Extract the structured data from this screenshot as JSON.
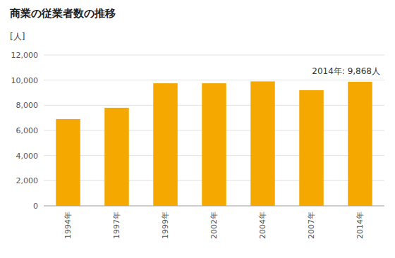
{
  "chart_data": {
    "type": "bar",
    "title": "商業の従業者数の推移",
    "ylabel": "[人]",
    "annotation": "2014年: 9,868人",
    "categories": [
      "1994年",
      "1997年",
      "1999年",
      "2002年",
      "2004年",
      "2007年",
      "2014年"
    ],
    "values": [
      6900,
      7800,
      9750,
      9750,
      9900,
      9200,
      9868
    ],
    "color": "#F5A800",
    "ylim": [
      0,
      12000
    ],
    "yticks": [
      0,
      {
        "value": 2000,
        "label": "2,000"
      },
      {
        "value": 4000,
        "label": "4,000"
      },
      {
        "value": 6000,
        "label": "6,000"
      },
      {
        "value": 8000,
        "label": "8,000"
      },
      {
        "value": 10000,
        "label": "10,000"
      },
      {
        "value": 12000,
        "label": "12,000"
      }
    ],
    "grid": true
  }
}
